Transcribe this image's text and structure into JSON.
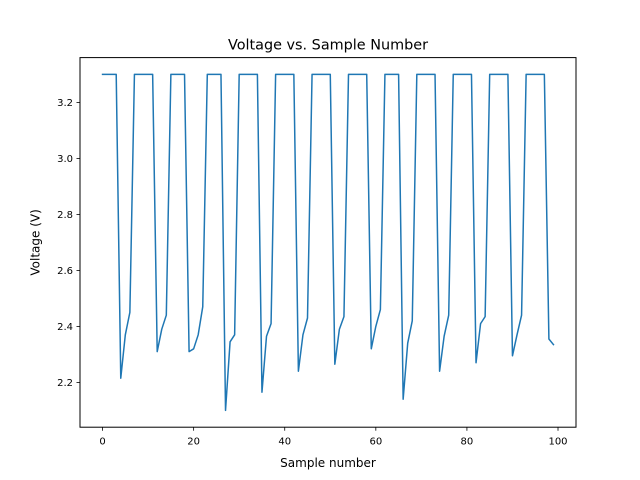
{
  "chart_data": {
    "type": "line",
    "title": "Voltage vs. Sample Number",
    "xlabel": "Sample number",
    "ylabel": "Voltage (V)",
    "xlim": [
      -4.95,
      103.95
    ],
    "ylim": [
      2.04,
      3.36
    ],
    "xticks": [
      0,
      20,
      40,
      60,
      80,
      100
    ],
    "xtick_labels": [
      "0",
      "20",
      "40",
      "60",
      "80",
      "100"
    ],
    "yticks": [
      2.2,
      2.4,
      2.6,
      2.8,
      3.0,
      3.2
    ],
    "ytick_labels": [
      "2.2",
      "2.4",
      "2.6",
      "2.8",
      "3.0",
      "3.2"
    ],
    "grid": false,
    "series": [
      {
        "color": "#1f77b4",
        "x": [
          0,
          1,
          2,
          3,
          4,
          5,
          6,
          7,
          8,
          9,
          10,
          11,
          12,
          13,
          14,
          15,
          16,
          17,
          18,
          19,
          20,
          21,
          22,
          23,
          24,
          25,
          26,
          27,
          28,
          29,
          30,
          31,
          32,
          33,
          34,
          35,
          36,
          37,
          38,
          39,
          40,
          41,
          42,
          43,
          44,
          45,
          46,
          47,
          48,
          49,
          50,
          51,
          52,
          53,
          54,
          55,
          56,
          57,
          58,
          59,
          60,
          61,
          62,
          63,
          64,
          65,
          66,
          67,
          68,
          69,
          70,
          71,
          72,
          73,
          74,
          75,
          76,
          77,
          78,
          79,
          80,
          81,
          82,
          83,
          84,
          85,
          86,
          87,
          88,
          89,
          90,
          91,
          92,
          93,
          94,
          95,
          96,
          97,
          98,
          99
        ],
        "values": [
          3.3,
          3.3,
          3.3,
          3.3,
          2.215,
          2.37,
          2.45,
          3.3,
          3.3,
          3.3,
          3.3,
          3.3,
          2.31,
          2.39,
          2.44,
          3.3,
          3.3,
          3.3,
          3.3,
          2.31,
          2.32,
          2.37,
          2.47,
          3.3,
          3.3,
          3.3,
          3.3,
          2.1,
          2.345,
          2.37,
          3.3,
          3.3,
          3.3,
          3.3,
          3.3,
          2.165,
          2.365,
          2.41,
          3.3,
          3.3,
          3.3,
          3.3,
          3.3,
          2.24,
          2.37,
          2.43,
          3.3,
          3.3,
          3.3,
          3.3,
          3.3,
          2.265,
          2.39,
          2.435,
          3.3,
          3.3,
          3.3,
          3.3,
          3.3,
          2.32,
          2.4,
          2.46,
          3.3,
          3.3,
          3.3,
          3.3,
          2.14,
          2.34,
          2.42,
          3.3,
          3.3,
          3.3,
          3.3,
          3.3,
          2.24,
          2.365,
          2.44,
          3.3,
          3.3,
          3.3,
          3.3,
          3.3,
          2.27,
          2.41,
          2.435,
          3.3,
          3.3,
          3.3,
          3.3,
          3.3,
          2.295,
          2.37,
          2.44,
          3.3,
          3.3,
          3.3,
          3.3,
          3.3,
          2.355,
          2.335
        ]
      }
    ]
  }
}
